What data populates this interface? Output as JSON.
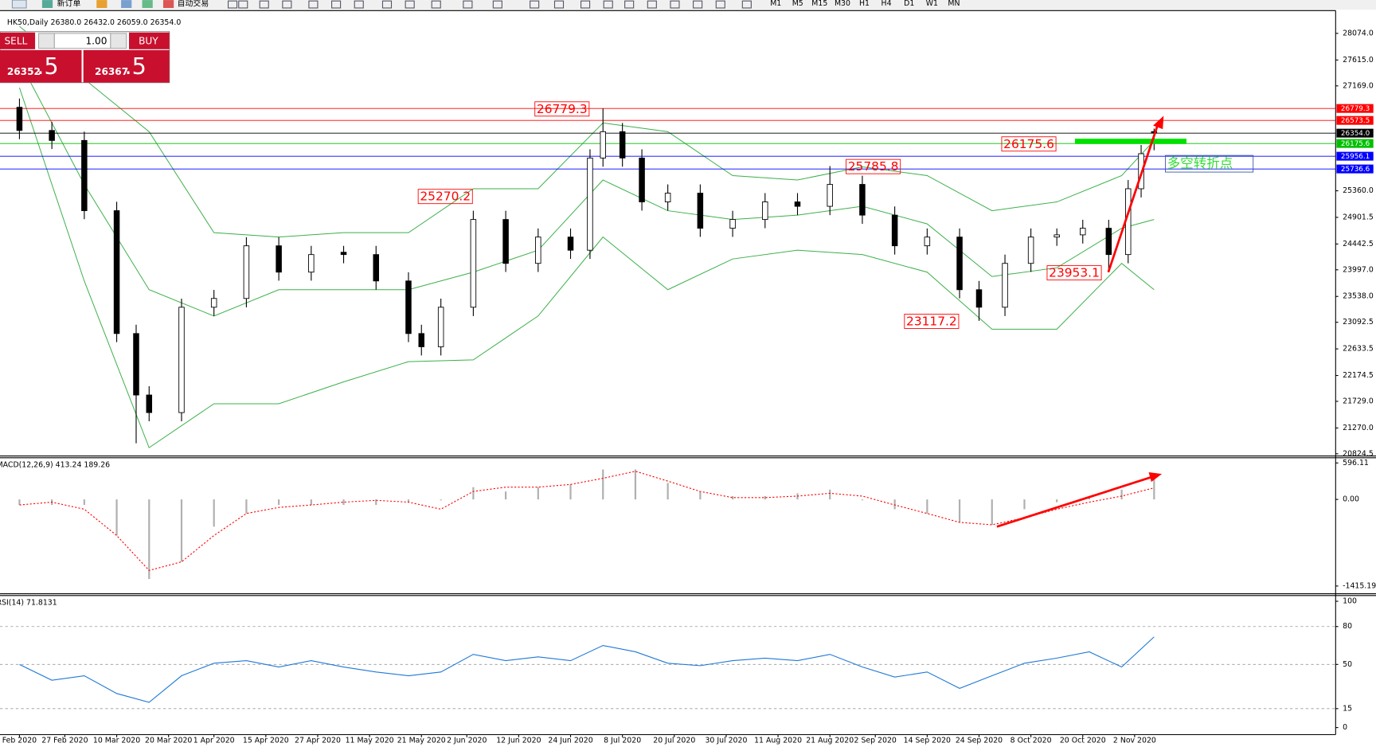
{
  "toolbar": {
    "new_order": "新订单",
    "auto_trading": "自动交易",
    "timeframes": [
      "M1",
      "M5",
      "M15",
      "M30",
      "H1",
      "H4",
      "D1",
      "W1",
      "MN"
    ]
  },
  "trade_panel": {
    "sell": "SELL",
    "buy": "BUY",
    "volume": "1.00",
    "bid_main": "26352",
    "bid_pip": ".5",
    "ask_main": "26367",
    "ask_pip": ".5"
  },
  "note": "多空转折点",
  "chart_data": [
    {
      "type": "candlestick",
      "title": "HK50,Daily  26380.0 26432.0 26059.0 26354.0",
      "xlim": [
        -3,
        203
      ],
      "ylim": [
        20794,
        28467
      ],
      "yticks": [
        {
          "value": 28074,
          "label": "28074.0"
        },
        {
          "value": 27615,
          "label": "27615.0"
        },
        {
          "value": 27169,
          "label": "27169.0"
        },
        {
          "value": 25360,
          "label": "25360.0"
        },
        24901.5,
        24442.5,
        {
          "value": 23997,
          "label": "23997.0"
        },
        {
          "value": 23538,
          "label": "23538.0"
        },
        23092.5,
        22633.5,
        22174.5,
        {
          "value": 21729,
          "label": "21729.0"
        },
        {
          "value": 21270,
          "label": "21270.0"
        },
        20824.5
      ],
      "x": [
        0,
        5,
        10,
        15,
        18,
        20,
        25,
        30,
        35,
        40,
        45,
        50,
        55,
        60,
        62,
        65,
        70,
        75,
        80,
        85,
        88,
        90,
        93,
        96,
        100,
        105,
        110,
        115,
        120,
        125,
        130,
        135,
        140,
        145,
        148,
        152,
        156,
        160,
        164,
        168,
        171,
        173,
        175
      ],
      "open": [
        26800,
        26400,
        26228,
        25017,
        22898,
        21838,
        21535,
        23352,
        23503,
        24411,
        23957,
        24300,
        24260,
        23805,
        22898,
        22670,
        23352,
        24865,
        24108,
        24562,
        24335,
        25925,
        26379,
        25925,
        25168,
        25319,
        24714,
        24865,
        25168,
        25092,
        25470,
        24940,
        24411,
        24562,
        23654,
        23352,
        24108,
        24562,
        24600,
        24714,
        24260,
        25395,
        26380
      ],
      "high": [
        26950,
        26550,
        26380,
        25170,
        23050,
        21990,
        23500,
        23650,
        24560,
        24560,
        24410,
        24410,
        24410,
        23955,
        23050,
        23500,
        25015,
        25015,
        24710,
        24710,
        26075,
        26779,
        26530,
        26075,
        25470,
        25470,
        25015,
        25320,
        25320,
        25786,
        25620,
        25090,
        24710,
        24710,
        23805,
        24260,
        24710,
        24710,
        24860,
        24860,
        25545,
        26150,
        26432
      ],
      "low": [
        26250,
        26080,
        24870,
        22750,
        21006,
        21385,
        21385,
        23200,
        23350,
        23810,
        23810,
        24110,
        23655,
        22750,
        22520,
        22520,
        23200,
        23960,
        23960,
        24185,
        24185,
        25775,
        25775,
        25018,
        25018,
        24565,
        24565,
        24715,
        24940,
        24940,
        24790,
        24260,
        24260,
        23505,
        23117,
        23200,
        23960,
        24410,
        24450,
        23953,
        24110,
        25245,
        26059
      ],
      "close": [
        26400,
        26228,
        25017,
        22898,
        21838,
        21535,
        23352,
        23503,
        24411,
        23957,
        24260,
        24260,
        23805,
        22898,
        22670,
        23352,
        24865,
        24108,
        24562,
        24335,
        25925,
        26379,
        25925,
        25168,
        25319,
        24714,
        24865,
        25168,
        25092,
        25470,
        24940,
        24411,
        24562,
        23654,
        23352,
        24108,
        24562,
        24600,
        24714,
        24260,
        25395,
        26000,
        26354
      ],
      "up_color": "#ffffff",
      "down_color": "#000000",
      "bands_x": [
        0,
        10,
        20,
        30,
        40,
        50,
        60,
        70,
        80,
        90,
        100,
        110,
        120,
        130,
        140,
        150,
        160,
        170,
        175
      ],
      "bands": [
        {
          "color": "#3cb04a",
          "values": [
            28195,
            27287,
            26379,
            24638,
            24562,
            24638,
            24638,
            25395,
            25395,
            26530,
            26379,
            25622,
            25546,
            25773,
            25622,
            25017,
            25168,
            25622,
            26227
          ]
        },
        {
          "color": "#3cb04a",
          "values": [
            27590,
            25471,
            23654,
            23200,
            23654,
            23654,
            23654,
            23957,
            24335,
            25546,
            25017,
            24865,
            24941,
            25092,
            24790,
            23881,
            24033,
            24714,
            24865
          ]
        },
        {
          "color": "#3cb04a",
          "values": [
            27136,
            23806,
            20930,
            21687,
            21687,
            22065,
            22413,
            22443,
            23200,
            24562,
            23654,
            24184,
            24335,
            24260,
            23957,
            22973,
            22973,
            24108,
            23654
          ]
        }
      ],
      "hlines": [
        {
          "value": 26779.3,
          "color": "#ff0000"
        },
        {
          "value": 26573.5,
          "color": "#ff0000"
        },
        {
          "value": 26354,
          "label": "26354.0",
          "color": "#000000"
        },
        {
          "value": 26175.6,
          "color": "#00c000"
        },
        {
          "value": 25956.1,
          "color": "#0000ff"
        },
        {
          "value": 25736.6,
          "color": "#0000ff"
        }
      ],
      "annotation_color": "#ff0000",
      "annotations": [
        {
          "x": 88,
          "value": 26779.3
        },
        {
          "x": 70,
          "value": 25270.2
        },
        {
          "x": 136,
          "value": 25785.8
        },
        {
          "x": 167,
          "value": 23953.1
        },
        {
          "x": 145,
          "value": 23117.2
        },
        {
          "x": 160,
          "value": 26175.6
        }
      ]
    },
    {
      "type": "bar",
      "title": "MACD(12,26,9) 413.24 189.26",
      "xlim": [
        -3,
        203
      ],
      "ylim": [
        -1535,
        674
      ],
      "yticks": [
        596.11,
        {
          "value": 0,
          "label": "0.00"
        },
        -1415.19
      ],
      "color": "#b0b0b0",
      "x": [
        0,
        5,
        10,
        15,
        20,
        25,
        30,
        35,
        40,
        45,
        50,
        55,
        60,
        65,
        70,
        75,
        80,
        85,
        90,
        95,
        100,
        105,
        110,
        115,
        120,
        125,
        130,
        135,
        140,
        145,
        150,
        155,
        160,
        165,
        170,
        175
      ],
      "values": [
        -90,
        -90,
        -90,
        -590,
        -1300,
        -1020,
        -445,
        -230,
        -90,
        -90,
        -90,
        -90,
        -45,
        -15,
        200,
        130,
        200,
        245,
        490,
        490,
        270,
        130,
        55,
        55,
        100,
        160,
        -15,
        -160,
        -230,
        -375,
        -415,
        -160,
        -45,
        55,
        160,
        413.24
      ],
      "signal": {
        "color": "#ff0000",
        "values": [
          -90,
          -45,
          -160,
          -590,
          -1160,
          -1020,
          -590,
          -230,
          -130,
          -90,
          -45,
          -15,
          -45,
          -160,
          130,
          200,
          200,
          245,
          345,
          460,
          300,
          130,
          30,
          30,
          55,
          100,
          55,
          -90,
          -230,
          -375,
          -415,
          -300,
          -160,
          -45,
          55,
          189.26
        ]
      }
    },
    {
      "type": "line",
      "title": "RSI(14) 71.8131",
      "xlim": [
        -3,
        203
      ],
      "ylim": [
        -5.6,
        104.2
      ],
      "yticks": [
        100,
        80,
        50,
        15,
        0
      ],
      "color": "#1e78d6",
      "x": [
        0,
        5,
        10,
        15,
        20,
        25,
        30,
        35,
        40,
        45,
        50,
        55,
        60,
        65,
        70,
        75,
        80,
        85,
        90,
        95,
        100,
        105,
        110,
        115,
        120,
        125,
        130,
        135,
        140,
        145,
        150,
        155,
        160,
        165,
        170,
        175
      ],
      "values": [
        50,
        37.5,
        41,
        27,
        20,
        41,
        51,
        53,
        48,
        53,
        48,
        44,
        41,
        44,
        58,
        53,
        56,
        53,
        65,
        60,
        51,
        49,
        53,
        55,
        53,
        58,
        48,
        40,
        44,
        31,
        41,
        51,
        55,
        60,
        48,
        71.8131
      ],
      "xticks": [
        {
          "value": 0,
          "label": "Feb 2020"
        },
        {
          "value": 7,
          "label": "27 Feb 2020"
        },
        {
          "value": 15,
          "label": "10 Mar 2020"
        },
        {
          "value": 23,
          "label": "20 Mar 2020"
        },
        {
          "value": 30,
          "label": "1 Apr 2020"
        },
        {
          "value": 38,
          "label": "15 Apr 2020"
        },
        {
          "value": 46,
          "label": "27 Apr 2020"
        },
        {
          "value": 54,
          "label": "11 May 2020"
        },
        {
          "value": 62,
          "label": "21 May 2020"
        },
        {
          "value": 69,
          "label": "2 Jun 2020"
        },
        {
          "value": 77,
          "label": "12 Jun 2020"
        },
        {
          "value": 85,
          "label": "24 Jun 2020"
        },
        {
          "value": 93,
          "label": "8 Jul 2020"
        },
        {
          "value": 101,
          "label": "20 Jul 2020"
        },
        {
          "value": 109,
          "label": "30 Jul 2020"
        },
        {
          "value": 117,
          "label": "11 Aug 2020"
        },
        {
          "value": 125,
          "label": "21 Aug 2020"
        },
        {
          "value": 132,
          "label": "2 Sep 2020"
        },
        {
          "value": 140,
          "label": "14 Sep 2020"
        },
        {
          "value": 148,
          "label": "24 Sep 2020"
        },
        {
          "value": 156,
          "label": "8 Oct 2020"
        },
        {
          "value": 164,
          "label": "20 Oct 2020"
        },
        {
          "value": 172,
          "label": "2 Nov 2020"
        }
      ]
    }
  ]
}
